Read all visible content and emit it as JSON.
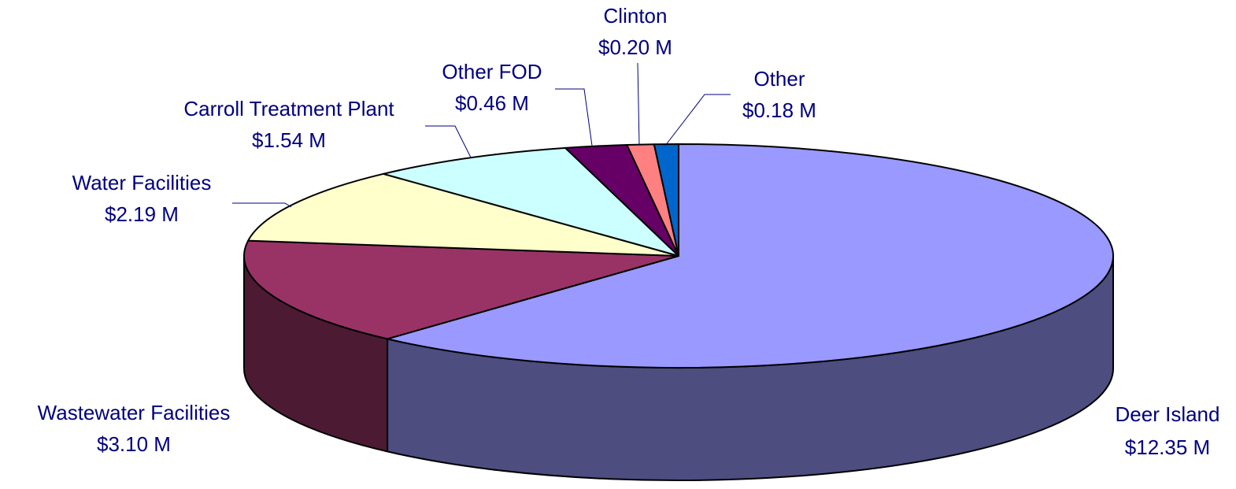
{
  "chart_data": {
    "type": "pie",
    "categories": [
      "Deer Island",
      "Wastewater Facilities",
      "Water Facilities",
      "Carroll Treatment Plant",
      "Other FOD",
      "Clinton",
      "Other"
    ],
    "values": [
      12.35,
      3.1,
      2.19,
      1.54,
      0.46,
      0.2,
      0.18
    ],
    "value_labels": [
      "$12.35 M",
      "$3.10 M",
      "$2.19 M",
      "$1.54 M",
      "$0.46 M",
      "$0.20 M",
      "$0.18 M"
    ],
    "colors": [
      "#9999ff",
      "#993366",
      "#ffffcc",
      "#ccffff",
      "#660066",
      "#ff8080",
      "#0066cc"
    ]
  }
}
